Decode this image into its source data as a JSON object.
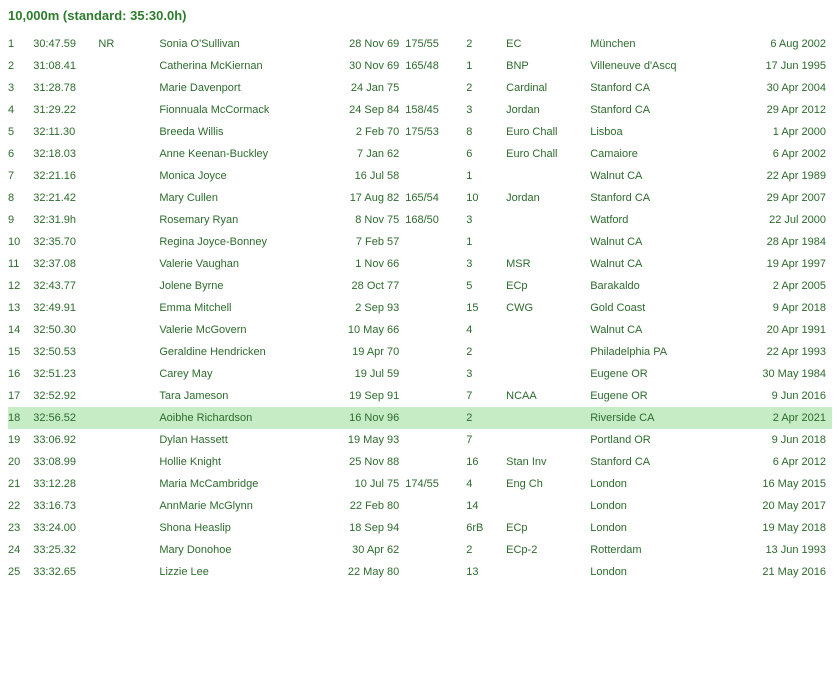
{
  "title": "10,000m (standard: 35:30.0h)",
  "rows": [
    {
      "rank": "1",
      "time": "30:47.59",
      "note": "NR",
      "name": "Sonia O'Sullivan",
      "dob": "28 Nov 69",
      "hw": "175/55",
      "pos": "2",
      "meet": "EC",
      "venue": "München",
      "date": "6 Aug 2002"
    },
    {
      "rank": "2",
      "time": "31:08.41",
      "note": "",
      "name": "Catherina McKiernan",
      "dob": "30 Nov 69",
      "hw": "165/48",
      "pos": "1",
      "meet": "BNP",
      "venue": "Villeneuve d'Ascq",
      "date": "17 Jun 1995"
    },
    {
      "rank": "3",
      "time": "31:28.78",
      "note": "",
      "name": "Marie Davenport",
      "dob": "24 Jan 75",
      "hw": "",
      "pos": "2",
      "meet": "Cardinal",
      "venue": "Stanford CA",
      "date": "30 Apr 2004"
    },
    {
      "rank": "4",
      "time": "31:29.22",
      "note": "",
      "name": "Fionnuala McCormack",
      "dob": "24 Sep 84",
      "hw": "158/45",
      "pos": "3",
      "meet": "Jordan",
      "venue": "Stanford CA",
      "date": "29 Apr 2012"
    },
    {
      "rank": "5",
      "time": "32:11.30",
      "note": "",
      "name": "Breeda Willis",
      "dob": "2 Feb 70",
      "hw": "175/53",
      "pos": "8",
      "meet": "Euro Chall",
      "venue": "Lisboa",
      "date": "1 Apr 2000"
    },
    {
      "rank": "6",
      "time": "32:18.03",
      "note": "",
      "name": "Anne Keenan-Buckley",
      "dob": "7 Jan 62",
      "hw": "",
      "pos": "6",
      "meet": "Euro Chall",
      "venue": "Camaiore",
      "date": "6 Apr 2002"
    },
    {
      "rank": "7",
      "time": "32:21.16",
      "note": "",
      "name": "Monica Joyce",
      "dob": "16 Jul 58",
      "hw": "",
      "pos": "1",
      "meet": "",
      "venue": "Walnut CA",
      "date": "22 Apr 1989"
    },
    {
      "rank": "8",
      "time": "32:21.42",
      "note": "",
      "name": "Mary Cullen",
      "dob": "17 Aug 82",
      "hw": "165/54",
      "pos": "10",
      "meet": "Jordan",
      "venue": "Stanford CA",
      "date": "29 Apr 2007"
    },
    {
      "rank": "9",
      "time": "32:31.9h",
      "note": "",
      "name": "Rosemary Ryan",
      "dob": "8 Nov 75",
      "hw": "168/50",
      "pos": "3",
      "meet": "",
      "venue": "Watford",
      "date": "22 Jul 2000"
    },
    {
      "rank": "10",
      "time": "32:35.70",
      "note": "",
      "name": "Regina Joyce-Bonney",
      "dob": "7 Feb 57",
      "hw": "",
      "pos": "1",
      "meet": "",
      "venue": "Walnut CA",
      "date": "28 Apr 1984"
    },
    {
      "rank": "11",
      "time": "32:37.08",
      "note": "",
      "name": "Valerie Vaughan",
      "dob": "1 Nov 66",
      "hw": "",
      "pos": "3",
      "meet": "MSR",
      "venue": "Walnut CA",
      "date": "19 Apr 1997"
    },
    {
      "rank": "12",
      "time": "32:43.77",
      "note": "",
      "name": "Jolene Byrne",
      "dob": "28 Oct 77",
      "hw": "",
      "pos": "5",
      "meet": "ECp",
      "venue": "Barakaldo",
      "date": "2 Apr 2005"
    },
    {
      "rank": "13",
      "time": "32:49.91",
      "note": "",
      "name": "Emma Mitchell",
      "dob": "2 Sep 93",
      "hw": "",
      "pos": "15",
      "meet": "CWG",
      "venue": "Gold Coast",
      "date": "9 Apr 2018"
    },
    {
      "rank": "14",
      "time": "32:50.30",
      "note": "",
      "name": "Valerie McGovern",
      "dob": "10 May 66",
      "hw": "",
      "pos": "4",
      "meet": "",
      "venue": "Walnut CA",
      "date": "20 Apr 1991"
    },
    {
      "rank": "15",
      "time": "32:50.53",
      "note": "",
      "name": "Geraldine Hendricken",
      "dob": "19 Apr 70",
      "hw": "",
      "pos": "2",
      "meet": "",
      "venue": "Philadelphia PA",
      "date": "22 Apr 1993"
    },
    {
      "rank": "16",
      "time": "32:51.23",
      "note": "",
      "name": "Carey May",
      "dob": "19 Jul 59",
      "hw": "",
      "pos": "3",
      "meet": "",
      "venue": "Eugene OR",
      "date": "30 May 1984"
    },
    {
      "rank": "17",
      "time": "32:52.92",
      "note": "",
      "name": "Tara Jameson",
      "dob": "19 Sep 91",
      "hw": "",
      "pos": "7",
      "meet": "NCAA",
      "venue": "Eugene OR",
      "date": "9 Jun 2016"
    },
    {
      "rank": "18",
      "time": "32:56.52",
      "note": "",
      "name": "Aoibhe Richardson",
      "dob": "16 Nov 96",
      "hw": "",
      "pos": "2",
      "meet": "",
      "venue": "Riverside CA",
      "date": "2 Apr 2021",
      "hl": true
    },
    {
      "rank": "19",
      "time": "33:06.92",
      "note": "",
      "name": "Dylan Hassett",
      "dob": "19 May 93",
      "hw": "",
      "pos": "7",
      "meet": "",
      "venue": "Portland OR",
      "date": "9 Jun 2018"
    },
    {
      "rank": "20",
      "time": "33:08.99",
      "note": "",
      "name": "Hollie Knight",
      "dob": "25 Nov 88",
      "hw": "",
      "pos": "16",
      "meet": "Stan Inv",
      "venue": "Stanford CA",
      "date": "6 Apr 2012"
    },
    {
      "rank": "21",
      "time": "33:12.28",
      "note": "",
      "name": "Maria McCambridge",
      "dob": "10 Jul 75",
      "hw": "174/55",
      "pos": "4",
      "meet": "Eng Ch",
      "venue": "London",
      "date": "16 May 2015"
    },
    {
      "rank": "22",
      "time": "33:16.73",
      "note": "",
      "name": "AnnMarie McGlynn",
      "dob": "22 Feb 80",
      "hw": "",
      "pos": "14",
      "meet": "",
      "venue": "London",
      "date": "20 May 2017"
    },
    {
      "rank": "23",
      "time": "33:24.00",
      "note": "",
      "name": "Shona Heaslip",
      "dob": "18 Sep 94",
      "hw": "",
      "pos": "6rB",
      "meet": "ECp",
      "venue": "London",
      "date": "19 May 2018"
    },
    {
      "rank": "24",
      "time": "33:25.32",
      "note": "",
      "name": "Mary Donohoe",
      "dob": "30 Apr 62",
      "hw": "",
      "pos": "2",
      "meet": "ECp-2",
      "venue": "Rotterdam",
      "date": "13 Jun 1993"
    },
    {
      "rank": "25",
      "time": "33:32.65",
      "note": "",
      "name": "Lizzie Lee",
      "dob": "22 May 80",
      "hw": "",
      "pos": "13",
      "meet": "",
      "venue": "London",
      "date": "21 May 2016"
    }
  ]
}
